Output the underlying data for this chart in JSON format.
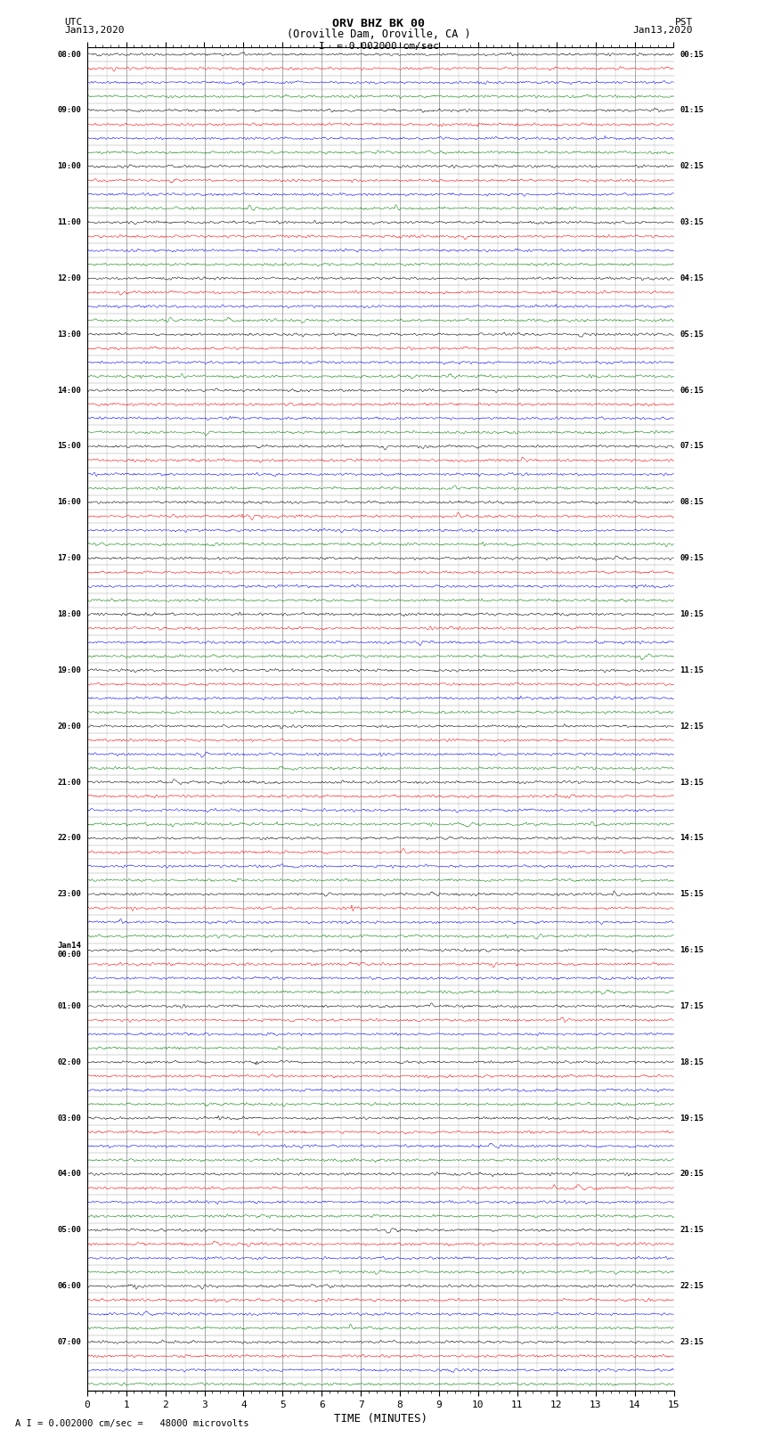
{
  "title_line1": "ORV BHZ BK 00",
  "title_line2": "(Oroville Dam, Oroville, CA )",
  "scale_label": "I  = 0.002000 cm/sec",
  "left_corner_label": "UTC\nJan13,2020",
  "right_corner_label": "PST\nJan13,2020",
  "xlabel": "TIME (MINUTES)",
  "bottom_note": "A I = 0.002000 cm/sec =   48000 microvolts",
  "line_colors": [
    "black",
    "red",
    "blue",
    "green"
  ],
  "xmin": 0,
  "xmax": 15,
  "xticks": [
    0,
    1,
    2,
    3,
    4,
    5,
    6,
    7,
    8,
    9,
    10,
    11,
    12,
    13,
    14,
    15
  ],
  "bg_color": "white",
  "grid_color": "#888888",
  "left_labels_utc": [
    "08:00",
    "",
    "",
    "",
    "09:00",
    "",
    "",
    "",
    "10:00",
    "",
    "",
    "",
    "11:00",
    "",
    "",
    "",
    "12:00",
    "",
    "",
    "",
    "13:00",
    "",
    "",
    "",
    "14:00",
    "",
    "",
    "",
    "15:00",
    "",
    "",
    "",
    "16:00",
    "",
    "",
    "",
    "17:00",
    "",
    "",
    "",
    "18:00",
    "",
    "",
    "",
    "19:00",
    "",
    "",
    "",
    "20:00",
    "",
    "",
    "",
    "21:00",
    "",
    "",
    "",
    "22:00",
    "",
    "",
    "",
    "23:00",
    "",
    "",
    "",
    "Jan14\n00:00",
    "",
    "",
    "",
    "01:00",
    "",
    "",
    "",
    "02:00",
    "",
    "",
    "",
    "03:00",
    "",
    "",
    "",
    "04:00",
    "",
    "",
    "",
    "05:00",
    "",
    "",
    "",
    "06:00",
    "",
    "",
    "",
    "07:00",
    "",
    "",
    ""
  ],
  "right_labels_pst": [
    "00:15",
    "",
    "",
    "",
    "01:15",
    "",
    "",
    "",
    "02:15",
    "",
    "",
    "",
    "03:15",
    "",
    "",
    "",
    "04:15",
    "",
    "",
    "",
    "05:15",
    "",
    "",
    "",
    "06:15",
    "",
    "",
    "",
    "07:15",
    "",
    "",
    "",
    "08:15",
    "",
    "",
    "",
    "09:15",
    "",
    "",
    "",
    "10:15",
    "",
    "",
    "",
    "11:15",
    "",
    "",
    "",
    "12:15",
    "",
    "",
    "",
    "13:15",
    "",
    "",
    "",
    "14:15",
    "",
    "",
    "",
    "15:15",
    "",
    "",
    "",
    "16:15",
    "",
    "",
    "",
    "17:15",
    "",
    "",
    "",
    "18:15",
    "",
    "",
    "",
    "19:15",
    "",
    "",
    "",
    "20:15",
    "",
    "",
    "",
    "21:15",
    "",
    "",
    "",
    "22:15",
    "",
    "",
    "",
    "23:15",
    "",
    "",
    ""
  ],
  "noise_amplitude": 0.09,
  "event_amplitude": 0.35,
  "num_hours": 24,
  "traces_per_hour": 4,
  "samples_per_trace": 1800
}
